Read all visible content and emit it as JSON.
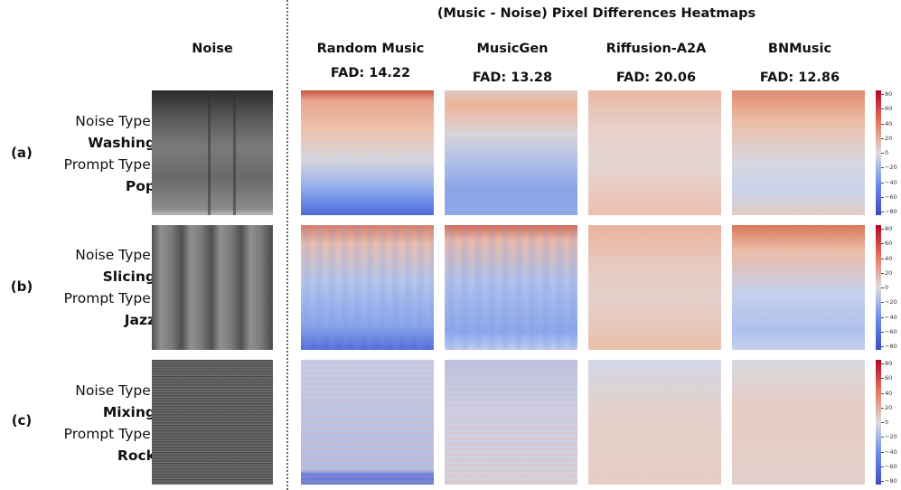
{
  "figure": {
    "title": "(Music - Noise) Pixel Differences Heatmaps",
    "noise_column_header": "Noise",
    "methods": [
      {
        "name": "Random Music",
        "fad": "FAD: 14.22"
      },
      {
        "name": "MusicGen",
        "fad": "FAD: 13.28"
      },
      {
        "name": "Riffusion-A2A",
        "fad": "FAD: 20.06"
      },
      {
        "name": "BNMusic",
        "fad": "FAD: 12.86"
      }
    ],
    "rows": [
      {
        "id": "(a)",
        "noise_type_label": "Noise Type:",
        "noise_type": "Washing",
        "prompt_type_label": "Prompt Type:",
        "prompt_type": "Pop"
      },
      {
        "id": "(b)",
        "noise_type_label": "Noise Type:",
        "noise_type": "Slicing",
        "prompt_type_label": "Prompt Type:",
        "prompt_type": "Jazz"
      },
      {
        "id": "(c)",
        "noise_type_label": "Noise Type:",
        "noise_type": "Mixing",
        "prompt_type_label": "Prompt Type:",
        "prompt_type": "Rock"
      }
    ],
    "colorbar_ticks": [
      "80",
      "60",
      "40",
      "20",
      "0",
      "−20",
      "−40",
      "−60",
      "−80"
    ],
    "colormap": {
      "high": "#b40426",
      "mid": "#dddddd",
      "low": "#3b4cc0"
    }
  }
}
